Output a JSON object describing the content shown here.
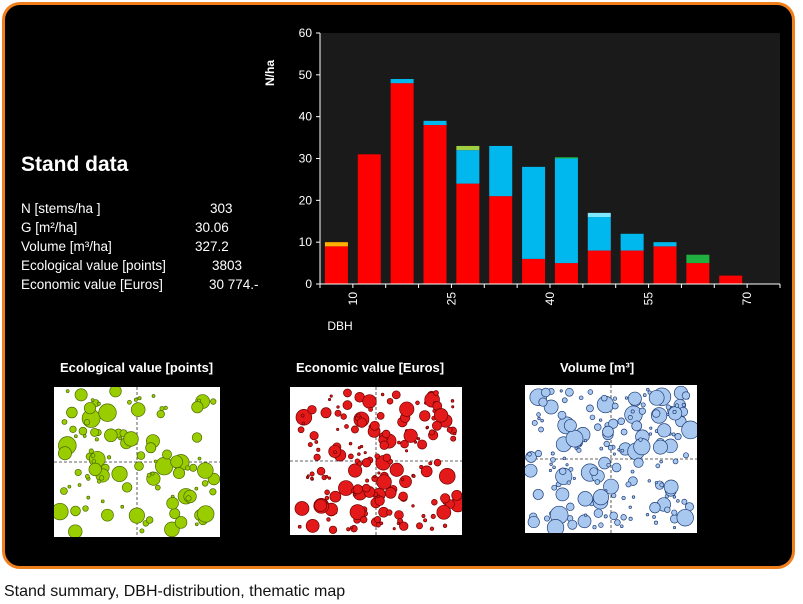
{
  "stand": {
    "title": "Stand data",
    "rows": [
      {
        "label": "N [stems/ha ]",
        "value": "303"
      },
      {
        "label": "G [m²/ha]",
        "value": "30.06"
      },
      {
        "label": "Volume [m³/ha]",
        "value": "327.2"
      },
      {
        "label": "Ecological value [points]",
        "value": "3803"
      },
      {
        "label": "Economic value [Euros]",
        "value": "30 774.-"
      }
    ]
  },
  "maps": [
    {
      "title": "Ecological value [points]",
      "fill": "#9acd00",
      "stroke": "#4a6a00"
    },
    {
      "title": "Economic value [Euros]",
      "fill": "#e41a1a",
      "stroke": "#700000"
    },
    {
      "title": "Volume [m³]",
      "fill": "#a9c8ef",
      "stroke": "#1f3f7a"
    }
  ],
  "caption": "Stand summary, DBH-distribution, thematic map",
  "chart_data": {
    "type": "bar",
    "stacked": true,
    "xlabel": "DBH",
    "ylabel": "N/ha",
    "ylim": [
      0,
      60
    ],
    "yticks": [
      0,
      10,
      20,
      30,
      40,
      50,
      60
    ],
    "grid": false,
    "plot_background": "#1a1a1a",
    "x_tick_labels": [
      {
        "after_bin": 0,
        "label": "10"
      },
      {
        "after_bin": 3,
        "label": "25"
      },
      {
        "after_bin": 6,
        "label": "40"
      },
      {
        "after_bin": 9,
        "label": "55"
      },
      {
        "after_bin": 12,
        "label": "70"
      }
    ],
    "categories": [
      "1",
      "2",
      "3",
      "4",
      "5",
      "6",
      "7",
      "8",
      "9",
      "10",
      "11",
      "12",
      "13",
      "14"
    ],
    "series": [
      {
        "color": "#ff0000",
        "values": [
          9,
          31,
          48,
          38,
          24,
          21,
          6,
          5,
          8,
          8,
          9,
          5,
          2,
          0
        ]
      },
      {
        "color": "#00b8ee",
        "values": [
          0,
          0,
          1,
          1,
          8,
          12,
          22,
          25,
          8,
          4,
          1,
          0,
          0,
          0
        ]
      },
      {
        "color": "#ffb000",
        "values": [
          1,
          0,
          0,
          0,
          0,
          0,
          0,
          0,
          0,
          0,
          0,
          0,
          0,
          0
        ]
      },
      {
        "color": "#a0d040",
        "values": [
          0,
          0,
          0,
          0,
          1,
          0,
          0,
          0,
          0,
          0,
          0,
          0,
          0,
          0
        ]
      },
      {
        "color": "#20b040",
        "values": [
          0,
          0,
          0,
          0,
          0,
          0,
          0,
          0.3,
          0,
          0,
          0,
          2,
          0,
          0
        ]
      },
      {
        "color": "#80e8ff",
        "values": [
          0,
          0,
          0,
          0,
          0,
          0,
          0,
          0,
          1,
          0,
          0,
          0,
          0,
          0
        ]
      }
    ]
  }
}
